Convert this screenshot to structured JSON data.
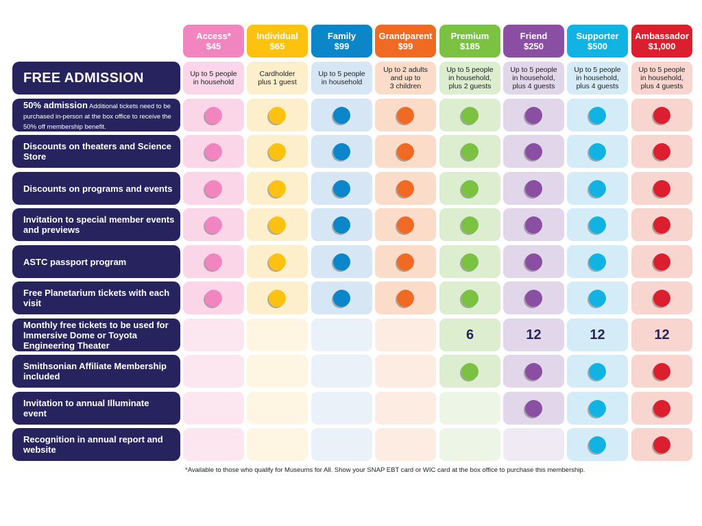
{
  "tiers": [
    {
      "name": "Access*",
      "price": "$45",
      "color": "#f185bf",
      "tint": "#fad6e8",
      "tint_light": "#fce7f1"
    },
    {
      "name": "Individual",
      "price": "$65",
      "color": "#fdc20f",
      "tint": "#fdefcb",
      "tint_light": "#fef6e3"
    },
    {
      "name": "Family",
      "price": "$99",
      "color": "#0a86c9",
      "tint": "#d7e6f5",
      "tint_light": "#ebf1f9"
    },
    {
      "name": "Grandparent",
      "price": "$99",
      "color": "#f06a24",
      "tint": "#fbdcc9",
      "tint_light": "#fdece2"
    },
    {
      "name": "Premium",
      "price": "$185",
      "color": "#7cc242",
      "tint": "#dcedd0",
      "tint_light": "#edf5e6"
    },
    {
      "name": "Friend",
      "price": "$250",
      "color": "#8a4fa3",
      "tint": "#e2d6eb",
      "tint_light": "#f0eaf4"
    },
    {
      "name": "Supporter",
      "price": "$500",
      "color": "#10b3e2",
      "tint": "#d3ecf8",
      "tint_light": "#e6f4fb"
    },
    {
      "name": "Ambassador",
      "price": "$1,000",
      "color": "#dc1f2e",
      "tint": "#f8d5cf",
      "tint_light": "#fbe7e3"
    }
  ],
  "rows": [
    {
      "label": "FREE ADMISSION",
      "type": "text",
      "cells": [
        "Up to 5 people\nin household",
        "Cardholder\nplus 1 guest",
        "Up to 5 people\nin household",
        "Up to 2 adults\nand up to\n3 children",
        "Up to 5 people\nin household,\nplus 2 guests",
        "Up to 5 people\nin household,\nplus 4 guests",
        "Up to 5 people\nin household,\nplus 4 guests",
        "Up to 5 people\nin household,\nplus 4 guests"
      ]
    },
    {
      "label": "50% admission",
      "note": "Additional tickets need to be purchased in-person at the box office to receive the 50% off membership benefit.",
      "type": "dots",
      "cells": [
        true,
        true,
        true,
        true,
        true,
        true,
        true,
        true
      ]
    },
    {
      "label": "Discounts on theaters and Science Store",
      "type": "dots",
      "cells": [
        true,
        true,
        true,
        true,
        true,
        true,
        true,
        true
      ]
    },
    {
      "label": "Discounts on programs and events",
      "type": "dots",
      "cells": [
        true,
        true,
        true,
        true,
        true,
        true,
        true,
        true
      ]
    },
    {
      "label": "Invitation to special member events and previews",
      "type": "dots",
      "cells": [
        true,
        true,
        true,
        true,
        true,
        true,
        true,
        true
      ]
    },
    {
      "label": "ASTC passport program",
      "type": "dots",
      "cells": [
        true,
        true,
        true,
        true,
        true,
        true,
        true,
        true
      ]
    },
    {
      "label": "Free Planetarium tickets with each visit",
      "type": "dots",
      "cells": [
        true,
        true,
        true,
        true,
        true,
        true,
        true,
        true
      ]
    },
    {
      "label": "Monthly free tickets to be used for Immersive Dome or Toyota Engineering Theater",
      "type": "count",
      "cells": [
        null,
        null,
        null,
        null,
        6,
        12,
        12,
        12
      ]
    },
    {
      "label": "Smithsonian Affiliate Membership included",
      "type": "dots",
      "cells": [
        false,
        false,
        false,
        false,
        true,
        true,
        true,
        true
      ]
    },
    {
      "label": "Invitation to annual Illuminate event",
      "type": "dots",
      "cells": [
        false,
        false,
        false,
        false,
        false,
        true,
        true,
        true
      ]
    },
    {
      "label": "Recognition in annual report and website",
      "type": "dots",
      "cells": [
        false,
        false,
        false,
        false,
        false,
        false,
        true,
        true
      ]
    }
  ],
  "footnote": "*Available to those who qualify for Museums for All. Show your SNAP EBT card or WIC card at the box office to purchase this membership.",
  "label_color": "#27235e"
}
